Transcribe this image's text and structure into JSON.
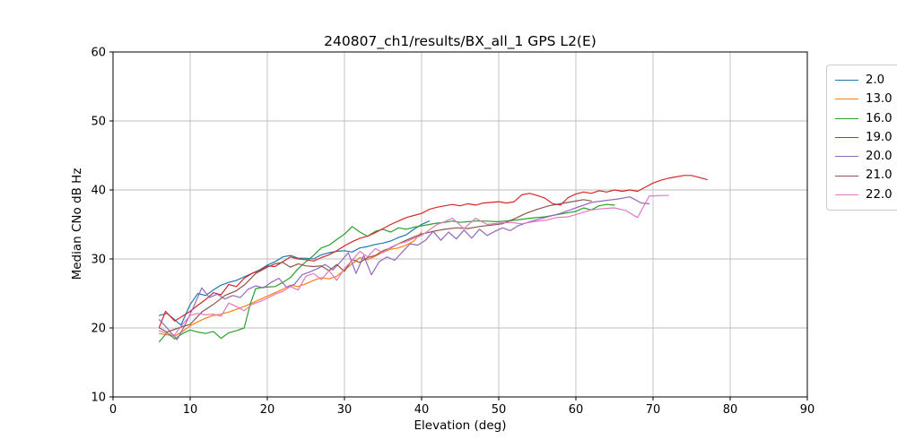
{
  "figure": {
    "title": "240807_ch1/results/BX_all_1 GPS L2(E)",
    "xlabel": "Elevation (deg)",
    "ylabel": "Median CNo dB Hz"
  },
  "chart_data": {
    "type": "line",
    "title": "240807_ch1/results/BX_all_1 GPS L2(E)",
    "xlabel": "Elevation (deg)",
    "ylabel": "Median CNo dB Hz",
    "xlim": [
      0,
      90
    ],
    "ylim": [
      10,
      60
    ],
    "xticks": [
      0,
      10,
      20,
      30,
      40,
      50,
      60,
      70,
      80,
      90
    ],
    "yticks": [
      10,
      20,
      30,
      40,
      50,
      60
    ],
    "grid": true,
    "grid_color": "#bdbdbd",
    "legend_position": "outside-upper-right",
    "series": [
      {
        "name": "2.0",
        "color": "#1f77b4",
        "x": [
          6,
          7,
          8,
          8.8,
          10,
          11,
          12,
          13,
          14,
          15,
          16,
          17,
          18,
          19,
          20,
          21,
          22,
          23,
          24,
          25,
          26,
          27,
          28,
          29,
          30,
          31,
          32,
          33,
          34,
          35,
          36,
          37,
          38,
          39,
          40,
          41
        ],
        "y": [
          21.8,
          22.1,
          21.2,
          20.4,
          23.4,
          25.0,
          24.7,
          25.5,
          26.2,
          26.6,
          26.9,
          27.4,
          27.9,
          28.4,
          29.1,
          29.6,
          30.3,
          30.5,
          30.1,
          30.1,
          30.0,
          30.6,
          30.9,
          31.1,
          31.2,
          31.0,
          31.6,
          31.8,
          32.1,
          32.3,
          32.6,
          33.1,
          33.5,
          34.3,
          35.0,
          35.5
        ]
      },
      {
        "name": "13.0",
        "color": "#ff7f0e",
        "x": [
          6,
          7,
          8,
          9,
          10,
          11,
          12,
          13,
          14,
          15,
          16,
          17,
          18,
          19,
          20,
          21,
          22,
          23,
          24,
          25,
          26,
          27,
          28,
          29,
          30,
          31,
          32,
          33,
          34,
          35,
          36,
          37,
          38,
          39,
          40
        ],
        "y": [
          19.2,
          19.0,
          18.8,
          19.5,
          20.3,
          20.9,
          21.4,
          21.8,
          22.0,
          22.3,
          22.7,
          23.1,
          23.6,
          24.1,
          24.6,
          25.1,
          25.6,
          26.2,
          26.0,
          26.4,
          26.9,
          27.3,
          27.1,
          27.5,
          28.4,
          29.3,
          30.2,
          29.9,
          30.4,
          31.0,
          31.4,
          31.6,
          32.0,
          32.6,
          33.9
        ]
      },
      {
        "name": "16.0",
        "color": "#2ca02c",
        "x": [
          6,
          7,
          8,
          9,
          10,
          11,
          12,
          13,
          14,
          15,
          16,
          17,
          17.8,
          18.5,
          19.5,
          21,
          22,
          23,
          24,
          25,
          26,
          27,
          28,
          29,
          30,
          31,
          32,
          33,
          34,
          35,
          36,
          37,
          38,
          39,
          40,
          41,
          42,
          43,
          44,
          45,
          46,
          47,
          48,
          50,
          52,
          54,
          56,
          58,
          60,
          61,
          62,
          63,
          64,
          65
        ],
        "y": [
          18.0,
          19.3,
          18.4,
          19.2,
          19.7,
          19.4,
          19.2,
          19.5,
          18.5,
          19.3,
          19.6,
          20.0,
          23.5,
          25.7,
          25.9,
          26.0,
          26.6,
          27.3,
          28.6,
          29.6,
          30.5,
          31.6,
          32.0,
          32.8,
          33.6,
          34.7,
          33.9,
          33.3,
          34.0,
          34.3,
          33.9,
          34.5,
          34.3,
          34.6,
          34.8,
          35.0,
          35.2,
          35.3,
          35.5,
          35.3,
          35.4,
          35.5,
          35.5,
          35.4,
          35.6,
          35.9,
          36.1,
          36.5,
          36.9,
          37.4,
          37.1,
          37.7,
          37.9,
          37.8
        ]
      },
      {
        "name": "19.0",
        "color": "#d62728",
        "x": [
          6,
          6.8,
          8,
          9,
          10,
          11,
          12,
          13,
          14,
          15,
          16,
          17,
          18,
          19,
          20,
          21,
          22,
          23,
          24,
          25,
          26,
          27,
          28,
          29,
          30,
          31,
          32,
          33,
          34,
          35,
          36,
          37,
          38,
          39,
          40,
          41,
          42,
          43,
          44,
          45,
          46,
          47,
          48,
          49,
          50,
          51,
          52,
          53,
          54,
          55,
          56,
          57,
          58,
          59,
          60,
          61,
          62,
          63,
          64,
          65,
          66,
          67,
          68,
          69,
          70,
          71,
          72,
          73,
          74,
          75,
          76,
          77
        ],
        "y": [
          20.1,
          22.4,
          21.0,
          21.7,
          22.4,
          23.3,
          24.1,
          25.1,
          24.8,
          26.3,
          26.0,
          27.2,
          27.9,
          28.3,
          29.0,
          28.9,
          29.6,
          30.3,
          30.0,
          29.9,
          29.7,
          30.2,
          30.6,
          31.2,
          31.9,
          32.5,
          33.0,
          33.3,
          33.8,
          34.4,
          35.0,
          35.5,
          36.0,
          36.3,
          36.6,
          37.2,
          37.5,
          37.7,
          37.9,
          37.7,
          38.0,
          37.8,
          38.1,
          38.2,
          38.3,
          38.1,
          38.3,
          39.3,
          39.5,
          39.2,
          38.8,
          38.0,
          37.8,
          38.9,
          39.4,
          39.7,
          39.5,
          39.9,
          39.7,
          40.0,
          39.8,
          40.0,
          39.8,
          40.4,
          41.0,
          41.4,
          41.7,
          41.9,
          42.1,
          42.1,
          41.8,
          41.5
        ]
      },
      {
        "name": "20.0",
        "color": "#9467bd",
        "x": [
          6,
          7,
          8.3,
          9.5,
          10.5,
          11.5,
          12.5,
          13.5,
          14.5,
          15.5,
          16.5,
          17.5,
          18.5,
          19.5,
          20.5,
          21.5,
          22.5,
          23.5,
          24.5,
          25.5,
          26.5,
          27.5,
          28.5,
          29.5,
          30.5,
          31.5,
          32.5,
          33.5,
          34.5,
          35.5,
          36.5,
          37.5,
          38.5,
          39.5,
          40.5,
          41.5,
          42.5,
          43.5,
          44.5,
          45.5,
          46.5,
          47.5,
          48.5,
          49.5,
          50.5,
          51.5,
          52.5,
          54,
          56,
          58,
          60,
          62,
          64,
          65.5,
          67,
          68.5,
          69.5
        ],
        "y": [
          21.2,
          20.0,
          18.3,
          20.8,
          23.2,
          25.8,
          24.4,
          24.9,
          24.2,
          24.7,
          24.4,
          25.6,
          26.1,
          25.8,
          26.6,
          27.2,
          25.9,
          26.3,
          27.7,
          28.1,
          28.6,
          29.2,
          28.4,
          29.6,
          30.9,
          27.9,
          30.5,
          27.7,
          29.6,
          30.3,
          29.8,
          31.0,
          32.2,
          32.0,
          32.7,
          34.0,
          32.7,
          33.9,
          32.9,
          34.2,
          33.0,
          34.3,
          33.4,
          34.0,
          34.5,
          34.1,
          34.8,
          35.4,
          36.0,
          36.6,
          37.4,
          38.2,
          38.5,
          38.7,
          39.0,
          38.1,
          38.0
        ]
      },
      {
        "name": "21.0",
        "color": "#8c564b",
        "x": [
          6,
          7,
          8,
          9,
          10,
          11.5,
          13,
          14.5,
          16,
          17,
          18.5,
          20,
          21,
          22,
          23,
          24,
          25,
          26,
          27,
          28,
          29,
          30,
          31,
          32,
          33,
          34,
          35,
          36,
          37,
          38,
          39,
          40,
          41.5,
          43,
          44.5,
          46,
          47.5,
          49,
          50.5,
          52,
          53.5,
          55,
          56.5,
          58,
          59.5,
          61,
          62
        ],
        "y": [
          20.0,
          19.4,
          19.8,
          20.2,
          20.5,
          22.3,
          23.4,
          24.7,
          25.4,
          26.2,
          27.9,
          28.8,
          29.3,
          29.5,
          28.8,
          29.3,
          29.0,
          28.9,
          29.0,
          28.3,
          29.2,
          28.2,
          29.9,
          29.5,
          30.2,
          30.5,
          31.2,
          31.6,
          32.2,
          32.7,
          33.2,
          33.6,
          34.0,
          34.3,
          34.5,
          34.4,
          34.7,
          34.9,
          35.1,
          35.8,
          36.6,
          37.2,
          37.7,
          38.0,
          38.3,
          38.6,
          38.4
        ]
      },
      {
        "name": "22.0",
        "color": "#e377c2",
        "x": [
          6,
          7,
          8,
          9,
          10,
          11,
          12,
          13,
          14,
          15,
          16,
          17,
          18,
          19,
          20,
          21,
          22,
          23,
          24,
          25,
          26,
          27,
          28,
          29,
          30,
          31,
          32,
          33,
          34,
          35,
          36,
          37,
          38,
          39,
          40,
          41,
          42,
          43,
          44,
          45.5,
          47,
          48.5,
          50,
          51.5,
          53,
          54.5,
          56,
          57.5,
          59,
          60.5,
          62,
          63.5,
          65,
          66.5,
          68,
          69.5,
          71,
          72
        ],
        "y": [
          19.6,
          19.2,
          19.0,
          20.5,
          21.8,
          22.1,
          21.9,
          22.0,
          21.7,
          23.6,
          23.1,
          22.5,
          23.4,
          23.8,
          24.3,
          24.9,
          25.3,
          26.0,
          25.5,
          27.5,
          27.9,
          27.0,
          28.3,
          26.9,
          28.6,
          29.8,
          31.1,
          30.3,
          31.5,
          30.9,
          31.7,
          32.2,
          32.5,
          33.0,
          33.4,
          34.2,
          35.0,
          35.4,
          35.9,
          34.4,
          35.9,
          35.0,
          35.2,
          35.3,
          35.1,
          35.4,
          35.6,
          36.0,
          36.1,
          36.6,
          37.1,
          37.3,
          37.4,
          37.0,
          36.0,
          39.1,
          39.2,
          39.2
        ]
      }
    ]
  }
}
